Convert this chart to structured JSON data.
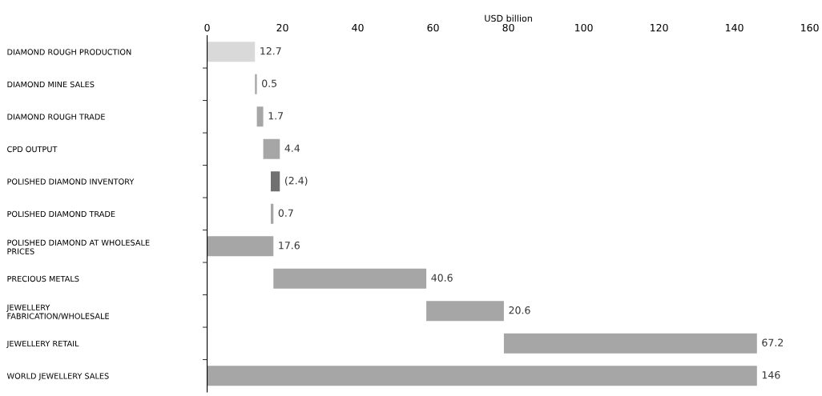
{
  "chart_data": {
    "type": "bar",
    "orientation": "horizontal",
    "xlabel": "USD billion",
    "categories": [
      "DIAMOND ROUGH PRODUCTION",
      "DIAMOND MINE SALES",
      "DIAMOND ROUGH TRADE",
      "CPD OUTPUT",
      "POLISHED DIAMOND INVENTORY",
      "POLISHED DIAMOND TRADE",
      "POLISHED DIAMOND AT WHOLESALE\nPRICES",
      "PRECIOUS METALS",
      "JEWELLERY\nFABRICATION/WHOLESALE",
      "JEWELLERY RETAIL",
      "WORLD JEWELLERY SALES"
    ],
    "values": [
      12.7,
      0.5,
      1.7,
      4.4,
      -2.4,
      0.7,
      17.6,
      40.6,
      20.6,
      67.2,
      146
    ],
    "base": [
      0,
      12.7,
      13.2,
      14.9,
      19.3,
      16.9,
      0,
      17.6,
      58.2,
      78.8,
      0
    ],
    "colors": [
      "#d9d9d9",
      "#a6a6a6",
      "#a6a6a6",
      "#a6a6a6",
      "#707070",
      "#a6a6a6",
      "#a6a6a6",
      "#a6a6a6",
      "#a6a6a6",
      "#a6a6a6",
      "#a6a6a6"
    ],
    "value_labels": [
      "12.7",
      "0.5",
      "1.7",
      "4.4",
      "(2.4)",
      "0.7",
      "17.6",
      "40.6",
      "20.6",
      "67.2",
      "146"
    ],
    "xlim": [
      0,
      160
    ],
    "xticks": [
      0,
      20,
      40,
      60,
      80,
      100,
      120,
      140,
      160
    ],
    "grid": false
  }
}
